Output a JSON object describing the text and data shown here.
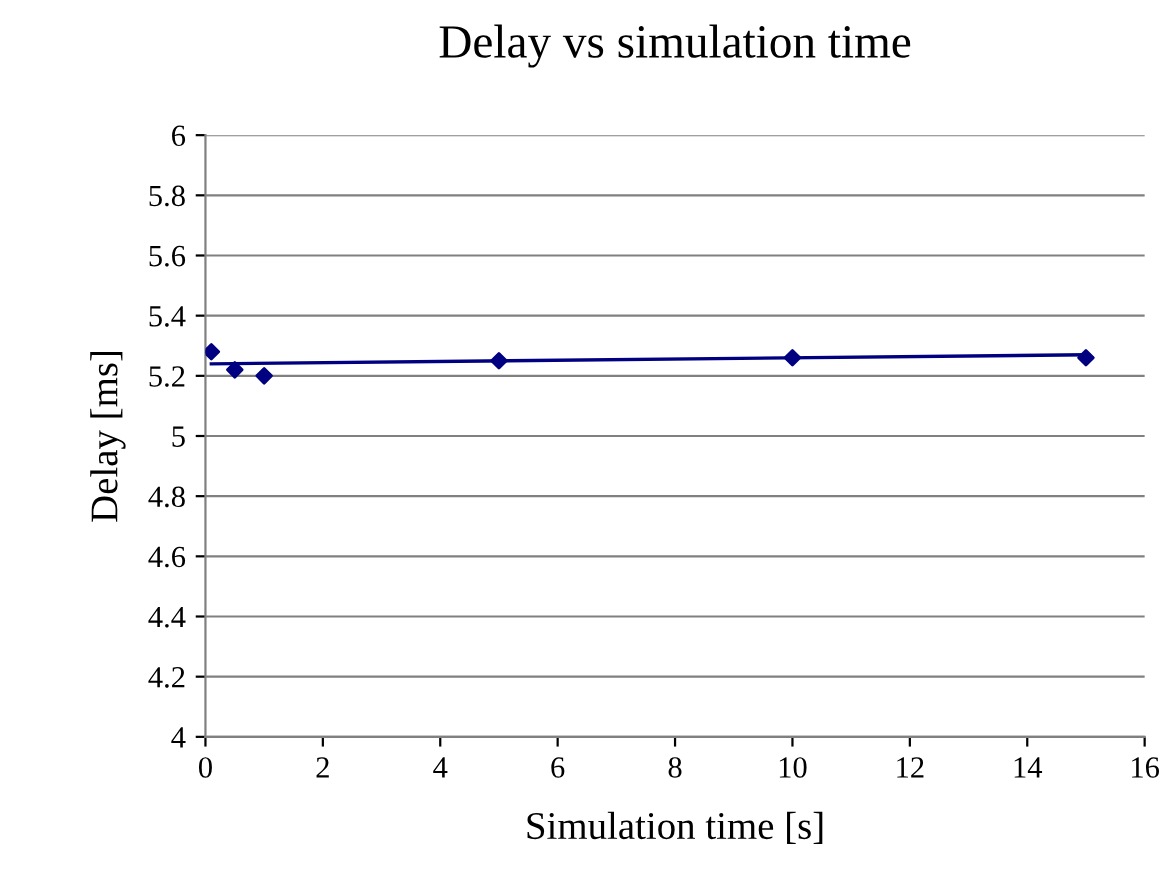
{
  "chart_data": {
    "type": "scatter",
    "title": "Delay vs simulation time",
    "xlabel": "Simulation time [s]",
    "ylabel": "Delay [ms]",
    "series": [
      {
        "x": [
          0.1,
          0.5,
          1,
          5,
          10,
          15
        ],
        "values": [
          5.28,
          5.22,
          5.2,
          5.25,
          5.26,
          5.26
        ],
        "color": "#000080",
        "marker": "diamond"
      },
      {
        "type": "line",
        "x": [
          0.1,
          15
        ],
        "values": [
          5.24,
          5.27
        ],
        "color": "#000080",
        "marker": "none"
      }
    ],
    "xlim": [
      0,
      16
    ],
    "xticks": [
      0,
      2,
      4,
      6,
      8,
      10,
      12,
      14,
      16
    ],
    "ylim": [
      4,
      6
    ],
    "yticks": [
      4,
      4.2,
      4.4,
      4.6,
      4.8,
      5,
      5.2,
      5.4,
      5.6,
      5.8,
      6
    ],
    "grid": "y",
    "legend": false
  }
}
